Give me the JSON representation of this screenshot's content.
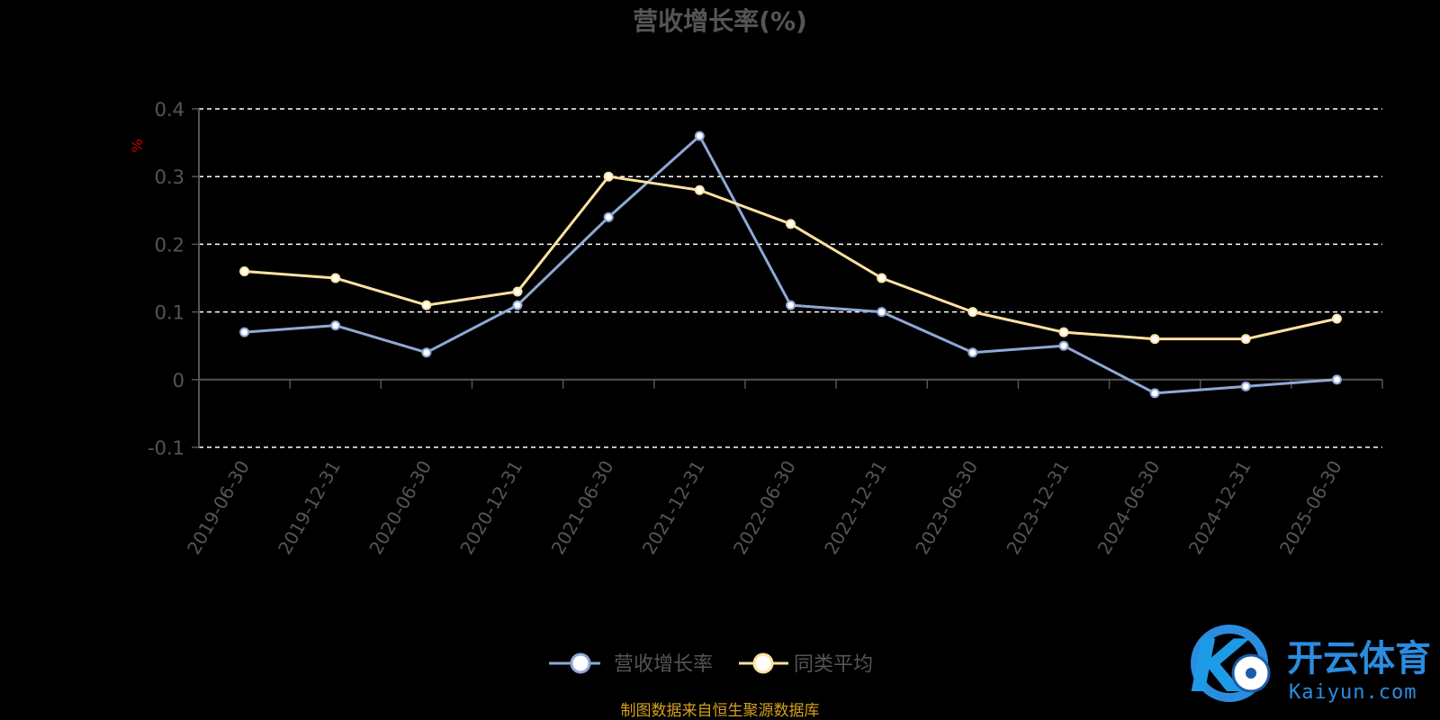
{
  "chart_data": {
    "type": "line",
    "title": "营收增长率(%)",
    "ylabel": "%",
    "ylim": [
      -0.1,
      0.4
    ],
    "yticks": [
      -0.1,
      0,
      0.1,
      0.2,
      0.3,
      0.4
    ],
    "ytick_labels": [
      "-0.1",
      "0",
      "0.1",
      "0.2",
      "0.3",
      "0.4"
    ],
    "categories": [
      "2019-06-30",
      "2019-12-31",
      "2020-06-30",
      "2020-12-31",
      "2021-06-30",
      "2021-12-31",
      "2022-06-30",
      "2022-12-31",
      "2023-06-30",
      "2023-12-31",
      "2024-06-30",
      "2024-12-31",
      "2025-06-30"
    ],
    "grid": true,
    "legend_position": "bottom",
    "series": [
      {
        "name": "营收增长率",
        "color": "#8fa8d6",
        "values": [
          0.07,
          0.08,
          0.04,
          0.11,
          0.24,
          0.36,
          0.11,
          0.1,
          0.04,
          0.05,
          -0.02,
          -0.01,
          0.0
        ]
      },
      {
        "name": "同类平均",
        "color": "#ffe2a0",
        "values": [
          0.16,
          0.15,
          0.11,
          0.13,
          0.3,
          0.28,
          0.23,
          0.15,
          0.1,
          0.07,
          0.06,
          0.06,
          0.09
        ]
      }
    ]
  },
  "source_note": "制图数据来自恒生聚源数据库",
  "watermark": {
    "name_cn": "开云体育",
    "name_en": "Kaiyun.com",
    "logo_letter": "K"
  },
  "colors": {
    "axis": "#555555",
    "tick_text": "#555555",
    "grid": "#ffffff",
    "unit": "#cc0000",
    "source": "#d4a020",
    "brand": "#2a8de0"
  }
}
